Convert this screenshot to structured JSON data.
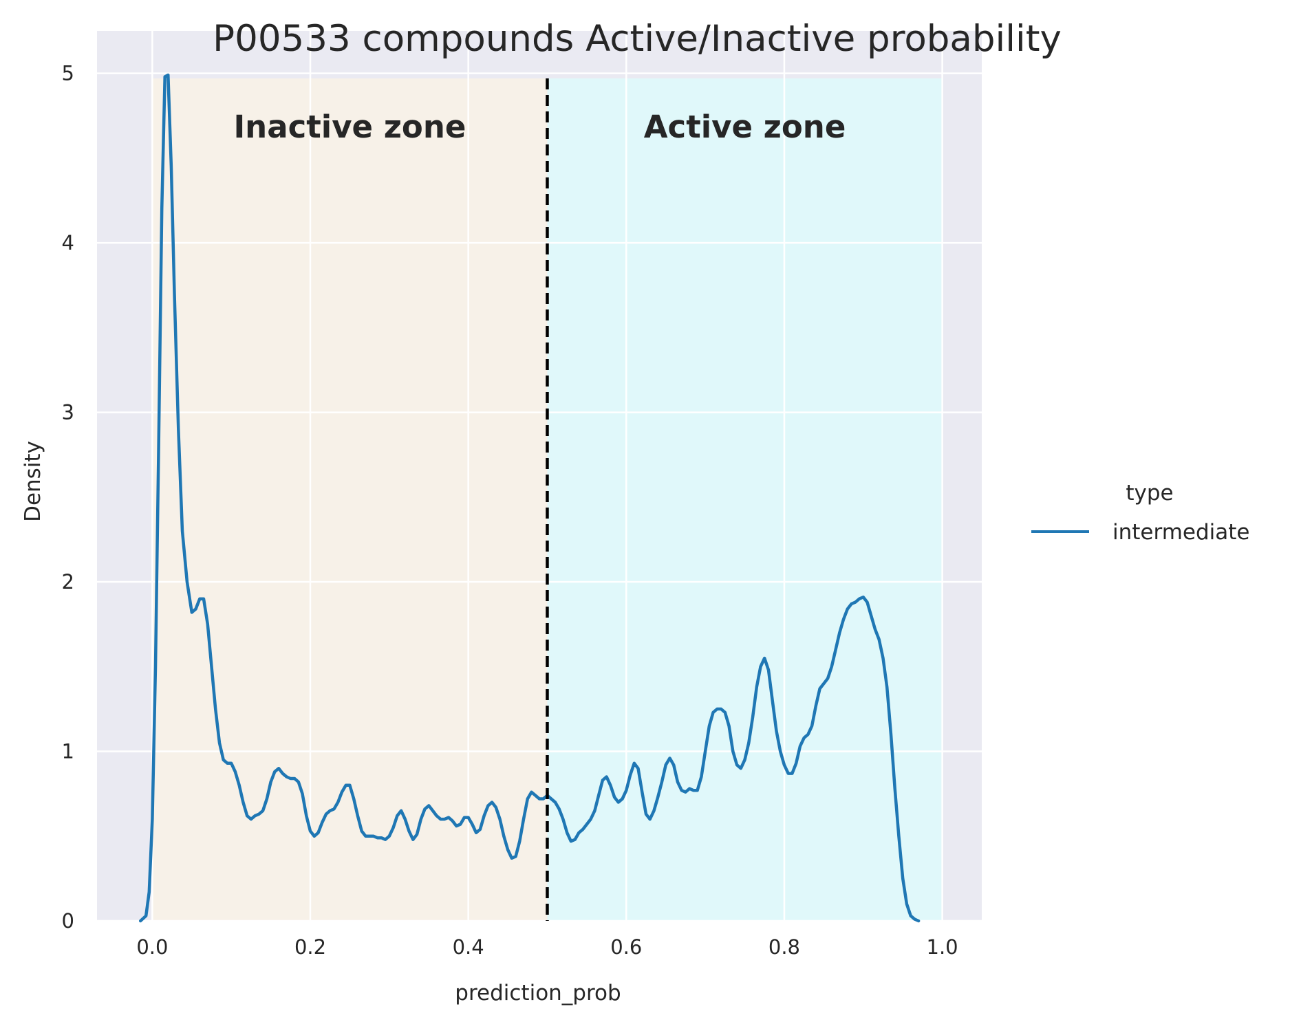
{
  "chart_data": {
    "type": "line",
    "title": "P00533 compounds Active/Inactive probability",
    "xlabel": "prediction_prob",
    "ylabel": "Density",
    "xlim": [
      -0.07,
      1.05
    ],
    "ylim": [
      0,
      5.25
    ],
    "x_ticks": [
      "0.0",
      "0.2",
      "0.4",
      "0.6",
      "0.8",
      "1.0"
    ],
    "y_ticks": [
      "0",
      "1",
      "2",
      "3",
      "4",
      "5"
    ],
    "grid": true,
    "background_color": "#EAEAF2",
    "legend": {
      "title": "type",
      "placement": "right",
      "entries": [
        "intermediate"
      ]
    },
    "threshold": {
      "x": 0.5,
      "style": "dashed",
      "color": "#000000"
    },
    "zones": [
      {
        "label": "Inactive zone",
        "x_range": [
          0.0,
          0.5
        ],
        "color": "#F7F1E8"
      },
      {
        "label": "Active zone",
        "x_range": [
          0.5,
          1.0
        ],
        "color": "#E0F8FA"
      }
    ],
    "series": [
      {
        "name": "intermediate",
        "color": "#1F77B4",
        "points": [
          [
            -0.015,
            0.0
          ],
          [
            -0.008,
            0.03
          ],
          [
            -0.004,
            0.17
          ],
          [
            0.0,
            0.6
          ],
          [
            0.004,
            1.5
          ],
          [
            0.008,
            2.8
          ],
          [
            0.012,
            4.2
          ],
          [
            0.016,
            4.98
          ],
          [
            0.02,
            4.99
          ],
          [
            0.024,
            4.45
          ],
          [
            0.028,
            3.7
          ],
          [
            0.033,
            2.9
          ],
          [
            0.038,
            2.3
          ],
          [
            0.044,
            2.0
          ],
          [
            0.05,
            1.82
          ],
          [
            0.055,
            1.84
          ],
          [
            0.06,
            1.9
          ],
          [
            0.065,
            1.9
          ],
          [
            0.07,
            1.75
          ],
          [
            0.075,
            1.5
          ],
          [
            0.08,
            1.25
          ],
          [
            0.085,
            1.05
          ],
          [
            0.09,
            0.95
          ],
          [
            0.095,
            0.93
          ],
          [
            0.1,
            0.93
          ],
          [
            0.105,
            0.88
          ],
          [
            0.11,
            0.8
          ],
          [
            0.115,
            0.7
          ],
          [
            0.12,
            0.62
          ],
          [
            0.125,
            0.6
          ],
          [
            0.13,
            0.62
          ],
          [
            0.135,
            0.63
          ],
          [
            0.14,
            0.65
          ],
          [
            0.145,
            0.72
          ],
          [
            0.15,
            0.82
          ],
          [
            0.155,
            0.88
          ],
          [
            0.16,
            0.9
          ],
          [
            0.165,
            0.87
          ],
          [
            0.17,
            0.85
          ],
          [
            0.175,
            0.84
          ],
          [
            0.18,
            0.84
          ],
          [
            0.185,
            0.82
          ],
          [
            0.19,
            0.75
          ],
          [
            0.195,
            0.62
          ],
          [
            0.2,
            0.53
          ],
          [
            0.205,
            0.5
          ],
          [
            0.21,
            0.52
          ],
          [
            0.215,
            0.58
          ],
          [
            0.22,
            0.63
          ],
          [
            0.225,
            0.65
          ],
          [
            0.23,
            0.66
          ],
          [
            0.235,
            0.7
          ],
          [
            0.24,
            0.76
          ],
          [
            0.245,
            0.8
          ],
          [
            0.25,
            0.8
          ],
          [
            0.255,
            0.72
          ],
          [
            0.26,
            0.62
          ],
          [
            0.265,
            0.53
          ],
          [
            0.27,
            0.5
          ],
          [
            0.275,
            0.5
          ],
          [
            0.28,
            0.5
          ],
          [
            0.285,
            0.49
          ],
          [
            0.29,
            0.49
          ],
          [
            0.295,
            0.48
          ],
          [
            0.3,
            0.5
          ],
          [
            0.305,
            0.55
          ],
          [
            0.31,
            0.62
          ],
          [
            0.315,
            0.65
          ],
          [
            0.32,
            0.6
          ],
          [
            0.325,
            0.53
          ],
          [
            0.33,
            0.48
          ],
          [
            0.335,
            0.51
          ],
          [
            0.34,
            0.6
          ],
          [
            0.345,
            0.66
          ],
          [
            0.35,
            0.68
          ],
          [
            0.355,
            0.65
          ],
          [
            0.36,
            0.62
          ],
          [
            0.365,
            0.6
          ],
          [
            0.37,
            0.6
          ],
          [
            0.375,
            0.61
          ],
          [
            0.38,
            0.59
          ],
          [
            0.385,
            0.56
          ],
          [
            0.39,
            0.57
          ],
          [
            0.395,
            0.61
          ],
          [
            0.4,
            0.61
          ],
          [
            0.405,
            0.57
          ],
          [
            0.41,
            0.52
          ],
          [
            0.415,
            0.54
          ],
          [
            0.42,
            0.62
          ],
          [
            0.425,
            0.68
          ],
          [
            0.43,
            0.7
          ],
          [
            0.435,
            0.67
          ],
          [
            0.44,
            0.6
          ],
          [
            0.445,
            0.5
          ],
          [
            0.45,
            0.42
          ],
          [
            0.455,
            0.37
          ],
          [
            0.46,
            0.38
          ],
          [
            0.465,
            0.47
          ],
          [
            0.47,
            0.6
          ],
          [
            0.475,
            0.72
          ],
          [
            0.48,
            0.76
          ],
          [
            0.485,
            0.74
          ],
          [
            0.49,
            0.72
          ],
          [
            0.495,
            0.72
          ],
          [
            0.5,
            0.74
          ],
          [
            0.505,
            0.72
          ],
          [
            0.51,
            0.7
          ],
          [
            0.515,
            0.66
          ],
          [
            0.52,
            0.6
          ],
          [
            0.525,
            0.52
          ],
          [
            0.53,
            0.47
          ],
          [
            0.535,
            0.48
          ],
          [
            0.54,
            0.52
          ],
          [
            0.545,
            0.54
          ],
          [
            0.55,
            0.57
          ],
          [
            0.555,
            0.6
          ],
          [
            0.56,
            0.65
          ],
          [
            0.565,
            0.74
          ],
          [
            0.57,
            0.83
          ],
          [
            0.575,
            0.85
          ],
          [
            0.58,
            0.8
          ],
          [
            0.585,
            0.73
          ],
          [
            0.59,
            0.7
          ],
          [
            0.595,
            0.72
          ],
          [
            0.6,
            0.77
          ],
          [
            0.605,
            0.86
          ],
          [
            0.61,
            0.93
          ],
          [
            0.615,
            0.9
          ],
          [
            0.62,
            0.76
          ],
          [
            0.625,
            0.63
          ],
          [
            0.63,
            0.6
          ],
          [
            0.635,
            0.65
          ],
          [
            0.64,
            0.73
          ],
          [
            0.645,
            0.82
          ],
          [
            0.65,
            0.92
          ],
          [
            0.655,
            0.96
          ],
          [
            0.66,
            0.92
          ],
          [
            0.665,
            0.82
          ],
          [
            0.67,
            0.77
          ],
          [
            0.675,
            0.76
          ],
          [
            0.68,
            0.78
          ],
          [
            0.685,
            0.77
          ],
          [
            0.69,
            0.77
          ],
          [
            0.695,
            0.85
          ],
          [
            0.7,
            1.0
          ],
          [
            0.705,
            1.15
          ],
          [
            0.71,
            1.23
          ],
          [
            0.715,
            1.25
          ],
          [
            0.72,
            1.25
          ],
          [
            0.725,
            1.23
          ],
          [
            0.73,
            1.15
          ],
          [
            0.735,
            1.0
          ],
          [
            0.74,
            0.92
          ],
          [
            0.745,
            0.9
          ],
          [
            0.75,
            0.95
          ],
          [
            0.755,
            1.05
          ],
          [
            0.76,
            1.2
          ],
          [
            0.765,
            1.38
          ],
          [
            0.77,
            1.5
          ],
          [
            0.775,
            1.55
          ],
          [
            0.78,
            1.48
          ],
          [
            0.785,
            1.3
          ],
          [
            0.79,
            1.12
          ],
          [
            0.795,
            1.0
          ],
          [
            0.8,
            0.92
          ],
          [
            0.805,
            0.87
          ],
          [
            0.81,
            0.87
          ],
          [
            0.815,
            0.93
          ],
          [
            0.82,
            1.03
          ],
          [
            0.825,
            1.08
          ],
          [
            0.83,
            1.1
          ],
          [
            0.835,
            1.15
          ],
          [
            0.84,
            1.27
          ],
          [
            0.845,
            1.37
          ],
          [
            0.85,
            1.4
          ],
          [
            0.855,
            1.43
          ],
          [
            0.86,
            1.5
          ],
          [
            0.865,
            1.6
          ],
          [
            0.87,
            1.7
          ],
          [
            0.875,
            1.78
          ],
          [
            0.88,
            1.84
          ],
          [
            0.885,
            1.87
          ],
          [
            0.89,
            1.88
          ],
          [
            0.895,
            1.9
          ],
          [
            0.9,
            1.91
          ],
          [
            0.905,
            1.88
          ],
          [
            0.91,
            1.8
          ],
          [
            0.915,
            1.72
          ],
          [
            0.92,
            1.66
          ],
          [
            0.925,
            1.55
          ],
          [
            0.93,
            1.38
          ],
          [
            0.935,
            1.1
          ],
          [
            0.94,
            0.78
          ],
          [
            0.945,
            0.5
          ],
          [
            0.95,
            0.25
          ],
          [
            0.955,
            0.1
          ],
          [
            0.96,
            0.03
          ],
          [
            0.965,
            0.01
          ],
          [
            0.97,
            0.0
          ]
        ]
      }
    ]
  }
}
